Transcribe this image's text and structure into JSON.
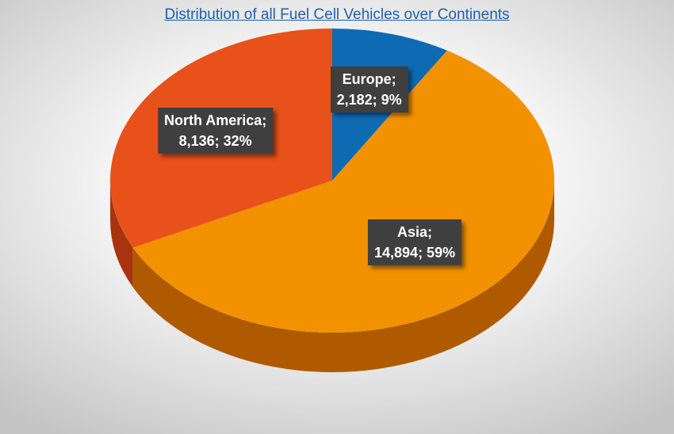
{
  "chart_data": {
    "type": "pie",
    "title": "Distribution of all Fuel Cell Vehicles over Continents",
    "slices": [
      {
        "label": "Europe",
        "value": 2182,
        "percent": 9,
        "line1": "Europe;",
        "line2": "2,182; 9%",
        "color": "#0f6ab4",
        "side_color": "#0a4a80"
      },
      {
        "label": "Asia",
        "value": 14894,
        "percent": 59,
        "line1": "Asia;",
        "line2": "14,894; 59%",
        "color": "#f29200",
        "side_color": "#b05a00"
      },
      {
        "label": "North America",
        "value": 8136,
        "percent": 32,
        "line1": "North America;",
        "line2": "8,136; 32%",
        "color": "#e8511a",
        "side_color": "#a8340f"
      }
    ]
  }
}
